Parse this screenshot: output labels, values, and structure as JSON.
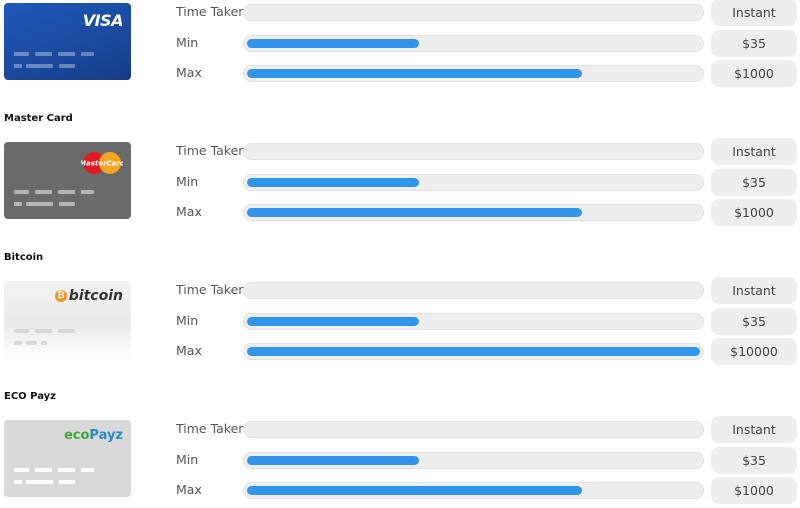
{
  "row_labels": {
    "time": "Time Taken",
    "min": "Min",
    "max": "Max"
  },
  "methods": [
    {
      "name": "",
      "brand_text": "VISA",
      "brand_icon": "visa-logo",
      "time_taken": "Instant",
      "min": "$35",
      "max": "$1000",
      "min_fill_fraction": 0.38,
      "max_fill_fraction": 0.74
    },
    {
      "name": "Master Card",
      "brand_text": "MasterCard",
      "brand_icon": "mastercard-logo",
      "time_taken": "Instant",
      "min": "$35",
      "max": "$1000",
      "min_fill_fraction": 0.38,
      "max_fill_fraction": 0.74
    },
    {
      "name": "Bitcoin",
      "brand_text": "bitcoin",
      "brand_icon": "bitcoin-logo",
      "time_taken": "Instant",
      "min": "$35",
      "max": "$10000",
      "min_fill_fraction": 0.38,
      "max_fill_fraction": 1.0
    },
    {
      "name": "ECO Payz",
      "brand_text_1": "eco",
      "brand_text_2": "Payz",
      "brand_icon": "ecopayz-logo",
      "time_taken": "Instant",
      "min": "$35",
      "max": "$1000",
      "min_fill_fraction": 0.38,
      "max_fill_fraction": 0.74
    }
  ],
  "colors": {
    "bar_fill": "#2f96ec",
    "track": "#eeeeee",
    "visa_card": "#1a4a9e",
    "mastercard_card": "#6a6a6a",
    "bitcoin_orange": "#f7931a",
    "eco_green": "#3aa53a",
    "eco_blue": "#2a8ac9"
  }
}
